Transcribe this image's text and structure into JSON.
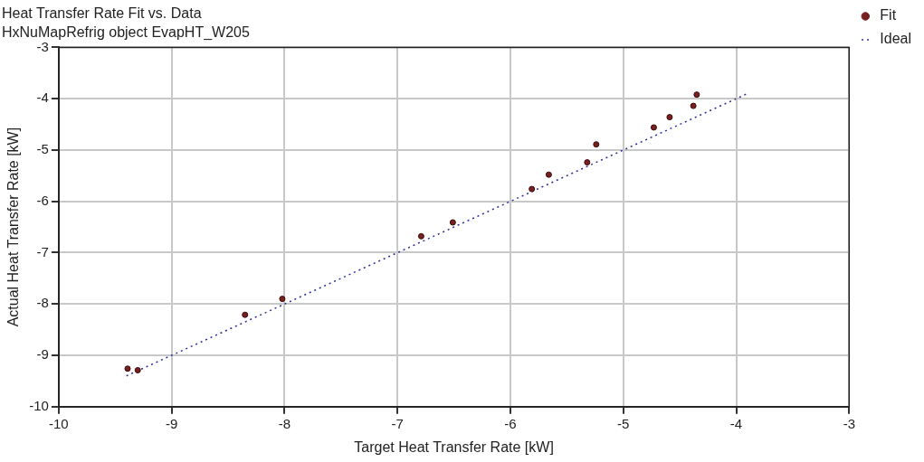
{
  "chart_data": {
    "type": "scatter",
    "title": "Heat Transfer Rate Fit vs. Data",
    "subtitle": "HxNuMapRefrig object EvapHT_W205",
    "xlabel": "Target Heat Transfer Rate [kW]",
    "ylabel": "Actual Heat Transfer Rate [kW]",
    "xlim": [
      -10,
      -3
    ],
    "ylim": [
      -10,
      -3
    ],
    "xticks": [
      -10,
      -9,
      -8,
      -7,
      -6,
      -5,
      -4,
      -3
    ],
    "yticks": [
      -10,
      -9,
      -8,
      -7,
      -6,
      -5,
      -4,
      -3
    ],
    "grid": true,
    "legend": "top right",
    "marker": "circle",
    "series": [
      {
        "name": "Fit",
        "color": "#7a1f1f",
        "x": [
          -9.39,
          -9.3,
          -8.35,
          -8.02,
          -6.79,
          -6.51,
          -5.81,
          -5.66,
          -5.32,
          -5.24,
          -4.73,
          -4.59,
          -4.38,
          -4.35
        ],
        "values": [
          -9.26,
          -9.29,
          -8.21,
          -7.9,
          -6.68,
          -6.41,
          -5.76,
          -5.48,
          -5.24,
          -4.89,
          -4.56,
          -4.36,
          -4.14,
          -3.92
        ]
      },
      {
        "name": "Ideal",
        "type": "line",
        "color": "#2b2b9c",
        "line_style": "dotted",
        "marker": "none",
        "x": [
          -9.4,
          -3.9
        ],
        "values": [
          -9.4,
          -3.9
        ]
      }
    ]
  }
}
